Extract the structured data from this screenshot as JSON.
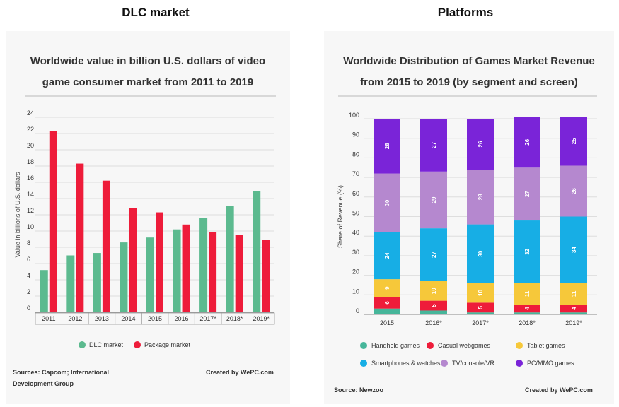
{
  "headers": {
    "left": "DLC market",
    "right": "Platforms"
  },
  "colors": {
    "dlc": "#5cba8f",
    "package": "#ee1c3a",
    "handheld": "#46b69a",
    "casual": "#ee1c3a",
    "tablet": "#f6c83a",
    "smartphones": "#17aee5",
    "tv": "#b588cf",
    "pc": "#7a24d8"
  },
  "left": {
    "title_line1": "Worldwide value in billion U.S. dollars of video",
    "title_line2": "game consumer market from 2011 to 2019",
    "sources_line1": "Sources: Capcom; International",
    "sources_line2": "Development Group",
    "created_by": "Created by WePC.com"
  },
  "right": {
    "title_line1": "Worldwide Distribution of Games Market Revenue",
    "title_line2": "from 2015 to 2019 (by segment and screen)",
    "source": "Source: Newzoo",
    "created_by": "Created by WePC.com"
  },
  "chart_data": [
    {
      "type": "bar",
      "categories": [
        "2011",
        "2012",
        "2013",
        "2014",
        "2015",
        "2016",
        "2017*",
        "2018*",
        "2019*"
      ],
      "series": [
        {
          "name": "DLC market",
          "values": [
            5.2,
            7.0,
            7.3,
            8.6,
            9.2,
            10.2,
            11.6,
            13.1,
            14.9
          ]
        },
        {
          "name": "Package market",
          "values": [
            22.3,
            18.3,
            16.2,
            12.8,
            12.3,
            10.8,
            9.9,
            9.5,
            8.9
          ]
        }
      ],
      "ylabel": "Value in billions of U.S. dollars",
      "ylim": [
        0,
        24
      ],
      "yticks": [
        0,
        2,
        4,
        6,
        8,
        10,
        12,
        14,
        16,
        18,
        20,
        22,
        24
      ],
      "grid": true,
      "legend": "bottom"
    },
    {
      "type": "bar",
      "stacked": true,
      "categories": [
        "2015",
        "2016*",
        "2017*",
        "2018*",
        "2019*"
      ],
      "series": [
        {
          "name": "Handheld games",
          "values": [
            3,
            2,
            1,
            1,
            1
          ],
          "labels": [
            "",
            "",
            "",
            "",
            ""
          ]
        },
        {
          "name": "Casual webgames",
          "values": [
            6,
            5,
            5,
            4,
            4
          ],
          "labels": [
            "6",
            "5",
            "5",
            "4",
            "4"
          ]
        },
        {
          "name": "Tablet games",
          "values": [
            9,
            10,
            10,
            11,
            11
          ],
          "labels": [
            "9",
            "10",
            "10",
            "11",
            "11"
          ]
        },
        {
          "name": "Smartphones & watches",
          "values": [
            24,
            27,
            30,
            32,
            34
          ],
          "labels": [
            "24",
            "27",
            "30",
            "32",
            "34"
          ]
        },
        {
          "name": "TV/console/VR",
          "values": [
            30,
            29,
            28,
            27,
            26
          ],
          "labels": [
            "30",
            "29",
            "28",
            "27",
            "26"
          ]
        },
        {
          "name": "PC/MMO games",
          "values": [
            28,
            27,
            26,
            26,
            25
          ],
          "labels": [
            "28",
            "27",
            "26",
            "26",
            "25"
          ]
        }
      ],
      "ylabel": "Share of Revenue (%)",
      "ylim": [
        0,
        100
      ],
      "yticks": [
        0,
        10,
        20,
        30,
        40,
        50,
        60,
        70,
        80,
        90,
        100
      ],
      "grid": true,
      "legend": "bottom"
    }
  ]
}
